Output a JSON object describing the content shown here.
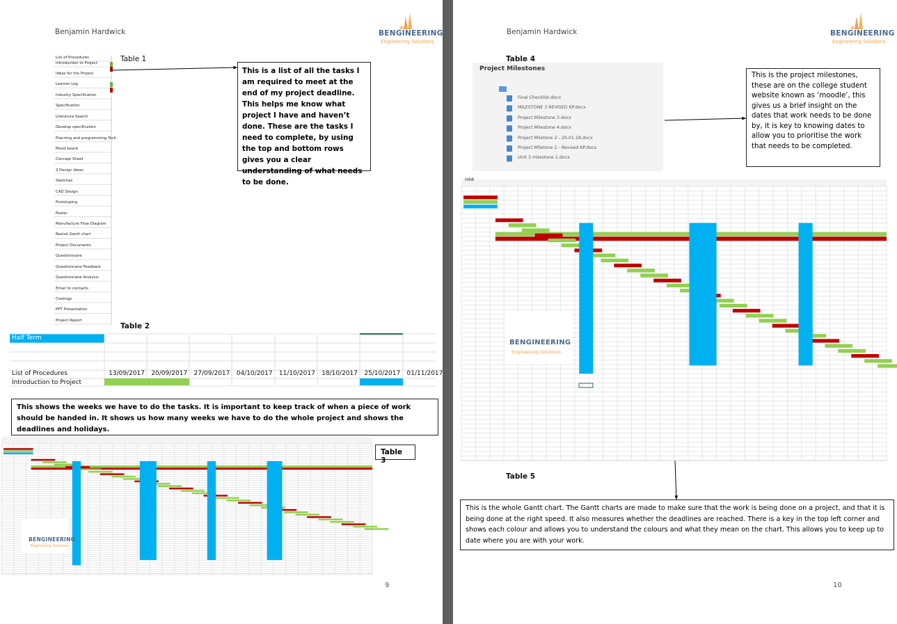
{
  "pages": [
    {
      "author": "Benjamin Hardwick",
      "logo": {
        "name": "BENGINEERING",
        "tagline": "Engineering Solutions"
      },
      "page_number": "9"
    },
    {
      "author": "Benjamin Hardwick",
      "logo": {
        "name": "BENGINEERING",
        "tagline": "Engineering Solutions"
      },
      "page_number": "10"
    }
  ],
  "table1": {
    "label": "Table 1",
    "items": [
      "List of Procedures",
      "Introduction to Project",
      "Ideas for the Project",
      "Learner Log",
      "Industry Specification",
      "Specification",
      "Literature Search",
      "Develop specification",
      "Planning and programming Tech",
      "Mood board",
      "Concept Sheet",
      "3 Design Ideas",
      "Sketches",
      "CAD Design",
      "Prototyping",
      "Poster",
      "Manufacture Flow Diagram",
      "Revisit Gantt chart",
      "Project Documents",
      "Questionnaire",
      "Questionnaire Feedback",
      "Questionnaire Analysis",
      "Email to contacts",
      "Costings",
      "PPT Presentation",
      "Project Report"
    ],
    "note": "This is a list of all the tasks I am required to meet at the end of my project deadline. This helps me know what project I have and haven’t done. These are the tasks I need to complete, by using the top and bottom rows gives you a clear understanding of what needs to be done."
  },
  "table2": {
    "label": "Table 2",
    "half_term": "Half Term",
    "row_label": "List of Procedures",
    "first_task": "Introduction to Project",
    "dates": [
      "13/09/2017",
      "20/09/2017",
      "27/09/2017",
      "04/10/2017",
      "11/10/2017",
      "18/10/2017",
      "25/10/2017",
      "01/11/2017"
    ],
    "note": "This shows the weeks we have to do the tasks. It is important to keep track of when a piece of work should be handed in. It shows us how many weeks we have to do the whole project and shows the deadlines and holidays."
  },
  "table3": {
    "label": "Table 3"
  },
  "table4": {
    "label": "Table 4",
    "heading": "Project Milestones",
    "files": [
      "Final Checklist.docx",
      "MILESTONE 3 REVISED KP.docx",
      "Project Milestone 3.docx",
      "Project Milestone 4.docx",
      "Project Miletone 2 - 29.01.18.docx",
      "Project Miletone 2 - Revised KP.docx",
      "Unit 3 milestone 1.docx"
    ],
    "note": "This is the project milestones, these are on the college student website known as ‘moodle’, this gives us a brief insight on the dates that work needs to be done by, it is key to knowing dates to allow you to prioritise the work that needs to be completed."
  },
  "table5": {
    "label": "Table 5",
    "note": "This is the whole Gantt chart. The Gantt charts are made to make sure that the work is being done on a project, and that it is being done at the right speed. It also measures whether the deadlines are reached. There is a key in the top left corner and shows each colour and allows you to understand the colours and what they mean on the chart. This allows you to keep up to date where you are with your work."
  },
  "spreadsheet": {
    "cell": "H68"
  }
}
